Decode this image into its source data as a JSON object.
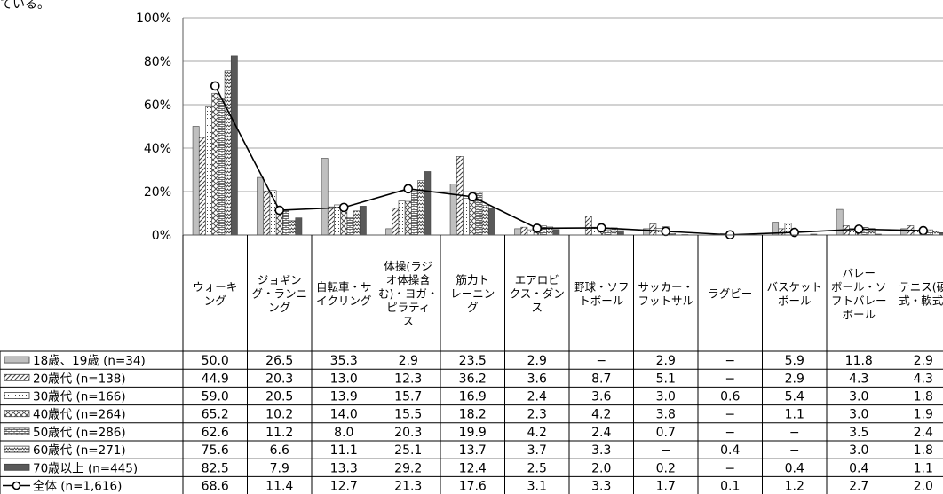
{
  "page": {
    "top_fragment": "ている。"
  },
  "chart_data": {
    "type": "bar",
    "y_ticks": [
      "100%",
      "80%",
      "60%",
      "40%",
      "20%",
      "0%"
    ],
    "ylim": [
      0,
      100
    ],
    "categories": [
      [
        "ウォーキ",
        "ング"
      ],
      [
        "ジョギン",
        "グ・ランニ",
        "ング"
      ],
      [
        "自転車・サ",
        "イクリング"
      ],
      [
        "体操(ラジ",
        "オ体操含",
        "む)・ヨガ・",
        "ピラティ",
        "ス"
      ],
      [
        "筋力ト",
        "レーニン",
        "グ"
      ],
      [
        "エアロビ",
        "クス・ダン",
        "ス"
      ],
      [
        "野球・ソフ",
        "トボール"
      ],
      [
        "サッカー・",
        "フットサル"
      ],
      [
        "ラグビー"
      ],
      [
        "バスケット",
        "ボール"
      ],
      [
        "バレー",
        "ボール・ソ",
        "フトバレー",
        "ボール"
      ],
      [
        "テニス(硬",
        "式・軟式)"
      ]
    ],
    "series": [
      {
        "name": "18歳、19歳 (n=34)",
        "pattern": "solid-light",
        "values": [
          50.0,
          26.5,
          35.3,
          2.9,
          23.5,
          2.9,
          null,
          2.9,
          null,
          5.9,
          11.8,
          2.9
        ],
        "labels": [
          "50.0",
          "26.5",
          "35.3",
          "2.9",
          "23.5",
          "2.9",
          "−",
          "2.9",
          "−",
          "5.9",
          "11.8",
          "2.9"
        ]
      },
      {
        "name": "20歳代 (n=138)",
        "pattern": "diagonal",
        "values": [
          44.9,
          20.3,
          13.0,
          12.3,
          36.2,
          3.6,
          8.7,
          5.1,
          null,
          2.9,
          4.3,
          4.3
        ],
        "labels": [
          "44.9",
          "20.3",
          "13.0",
          "12.3",
          "36.2",
          "3.6",
          "8.7",
          "5.1",
          "−",
          "2.9",
          "4.3",
          "4.3"
        ]
      },
      {
        "name": "30歳代 (n=166)",
        "pattern": "dots",
        "values": [
          59.0,
          20.5,
          13.9,
          15.7,
          16.9,
          2.4,
          3.6,
          3.0,
          0.6,
          5.4,
          3.0,
          1.8
        ],
        "labels": [
          "59.0",
          "20.5",
          "13.9",
          "15.7",
          "16.9",
          "2.4",
          "3.6",
          "3.0",
          "0.6",
          "5.4",
          "3.0",
          "1.8"
        ]
      },
      {
        "name": "40歳代 (n=264)",
        "pattern": "cross",
        "values": [
          65.2,
          10.2,
          14.0,
          15.5,
          18.2,
          2.3,
          4.2,
          3.8,
          null,
          1.1,
          3.0,
          1.9
        ],
        "labels": [
          "65.2",
          "10.2",
          "14.0",
          "15.5",
          "18.2",
          "2.3",
          "4.2",
          "3.8",
          "−",
          "1.1",
          "3.0",
          "1.9"
        ]
      },
      {
        "name": "50歳代 (n=286)",
        "pattern": "brick",
        "values": [
          62.6,
          11.2,
          8.0,
          20.3,
          19.9,
          4.2,
          2.4,
          0.7,
          null,
          null,
          3.5,
          2.4
        ],
        "labels": [
          "62.6",
          "11.2",
          "8.0",
          "20.3",
          "19.9",
          "4.2",
          "2.4",
          "0.7",
          "−",
          "−",
          "3.5",
          "2.4"
        ]
      },
      {
        "name": "60歳代 (n=271)",
        "pattern": "zigzag",
        "values": [
          75.6,
          6.6,
          11.1,
          25.1,
          13.7,
          3.7,
          3.3,
          null,
          0.4,
          null,
          3.0,
          1.8
        ],
        "labels": [
          "75.6",
          "6.6",
          "11.1",
          "25.1",
          "13.7",
          "3.7",
          "3.3",
          "−",
          "0.4",
          "−",
          "3.0",
          "1.8"
        ]
      },
      {
        "name": "70歳以上 (n=445)",
        "pattern": "solid-dark",
        "values": [
          82.5,
          7.9,
          13.3,
          29.2,
          12.4,
          2.5,
          2.0,
          0.2,
          null,
          0.4,
          0.4,
          1.1
        ],
        "labels": [
          "82.5",
          "7.9",
          "13.3",
          "29.2",
          "12.4",
          "2.5",
          "2.0",
          "0.2",
          "−",
          "0.4",
          "0.4",
          "1.1"
        ]
      }
    ],
    "line_series": {
      "name": "全体 (n=1,616)",
      "values": [
        68.6,
        11.4,
        12.7,
        21.3,
        17.6,
        3.1,
        3.3,
        1.7,
        0.1,
        1.2,
        2.7,
        2.0
      ],
      "labels": [
        "68.6",
        "11.4",
        "12.7",
        "21.3",
        "17.6",
        "3.1",
        "3.3",
        "1.7",
        "0.1",
        "1.2",
        "2.7",
        "2.0"
      ]
    },
    "grid": true,
    "legend": "table-left",
    "colors": {
      "solid_light": "#bfbfbf",
      "solid_dark": "#595959",
      "pattern_ink": "#404040",
      "line": "#000000"
    }
  }
}
